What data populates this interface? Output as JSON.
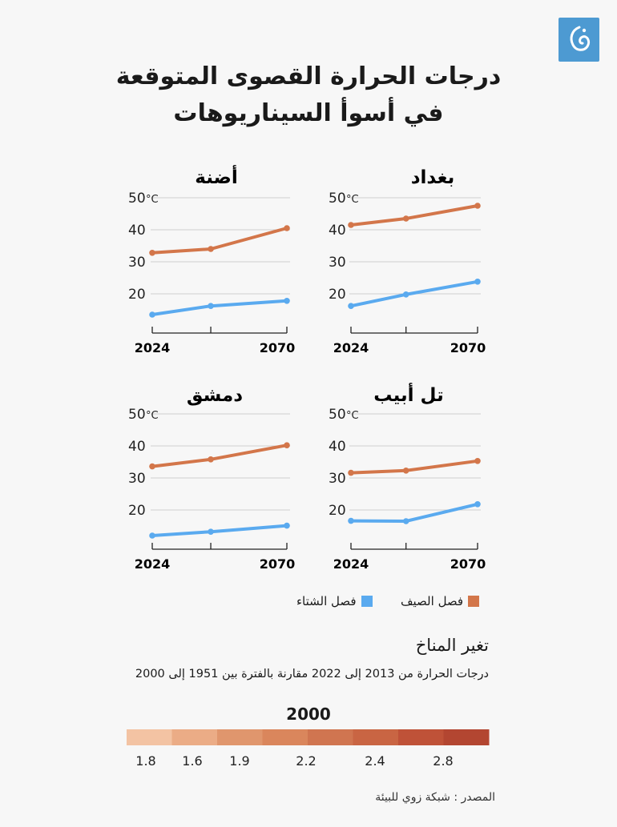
{
  "brand": {
    "logo_icon": "aljazeera-logo-icon",
    "color": "#4d9ad2"
  },
  "title": {
    "line1": "درجات الحرارة القصوى المتوقعة",
    "line2": "في أسوأ السيناريوهات"
  },
  "colors": {
    "summer": "#d3764a",
    "winter": "#5aaaef",
    "grid": "#cfcfcf"
  },
  "chart_data": [
    {
      "type": "line",
      "title": "بغداد",
      "unit": "°C",
      "ylim": [
        10,
        50
      ],
      "yticks": [
        20,
        30,
        40,
        50
      ],
      "x": [
        2024,
        2044,
        2070
      ],
      "xtick_labels": [
        "2024",
        "2070"
      ],
      "series": [
        {
          "name": "فصل الصيف",
          "values": [
            41.5,
            43.5,
            47.5
          ]
        },
        {
          "name": "فصل الشتاء",
          "values": [
            16.2,
            19.8,
            23.8
          ]
        }
      ]
    },
    {
      "type": "line",
      "title": "أضنة",
      "unit": "°C",
      "ylim": [
        10,
        50
      ],
      "yticks": [
        20,
        30,
        40,
        50
      ],
      "x": [
        2024,
        2044,
        2070
      ],
      "xtick_labels": [
        "2024",
        "2070"
      ],
      "series": [
        {
          "name": "فصل الصيف",
          "values": [
            32.8,
            34.0,
            40.5
          ]
        },
        {
          "name": "فصل الشتاء",
          "values": [
            13.5,
            16.2,
            17.8
          ]
        }
      ]
    },
    {
      "type": "line",
      "title": "تل أبيب",
      "unit": "°C",
      "ylim": [
        10,
        50
      ],
      "yticks": [
        20,
        30,
        40,
        50
      ],
      "x": [
        2024,
        2044,
        2070
      ],
      "xtick_labels": [
        "2024",
        "2070"
      ],
      "series": [
        {
          "name": "فصل الصيف",
          "values": [
            31.6,
            32.3,
            35.3
          ]
        },
        {
          "name": "فصل الشتاء",
          "values": [
            16.6,
            16.5,
            21.8
          ]
        }
      ]
    },
    {
      "type": "line",
      "title": "دمشق",
      "unit": "°C",
      "ylim": [
        10,
        50
      ],
      "yticks": [
        20,
        30,
        40,
        50
      ],
      "x": [
        2024,
        2044,
        2070
      ],
      "xtick_labels": [
        "2024",
        "2070"
      ],
      "series": [
        {
          "name": "فصل الصيف",
          "values": [
            33.6,
            35.8,
            40.2
          ]
        },
        {
          "name": "فصل الشتاء",
          "values": [
            12.0,
            13.2,
            15.1
          ]
        }
      ]
    }
  ],
  "legend": {
    "summer": "فصل الصيف",
    "winter": "فصل الشتاء"
  },
  "climate_scale": {
    "section_title": "تغير المناخ",
    "subtitle": "درجات الحرارة من 2013 إلى 2022 مقارنة بالفترة بين 1951 إلى 2000",
    "title": "2000",
    "colors": [
      "#f3c3a3",
      "#ebac86",
      "#e0966d",
      "#da865c",
      "#d07550",
      "#c96543",
      "#bf5238",
      "#b34631"
    ],
    "labels": [
      "1.8",
      "1.6",
      "1.9",
      "2.2",
      "2.4",
      "2.8"
    ]
  },
  "source": "المصدر : شبكة زوي للبيئة"
}
